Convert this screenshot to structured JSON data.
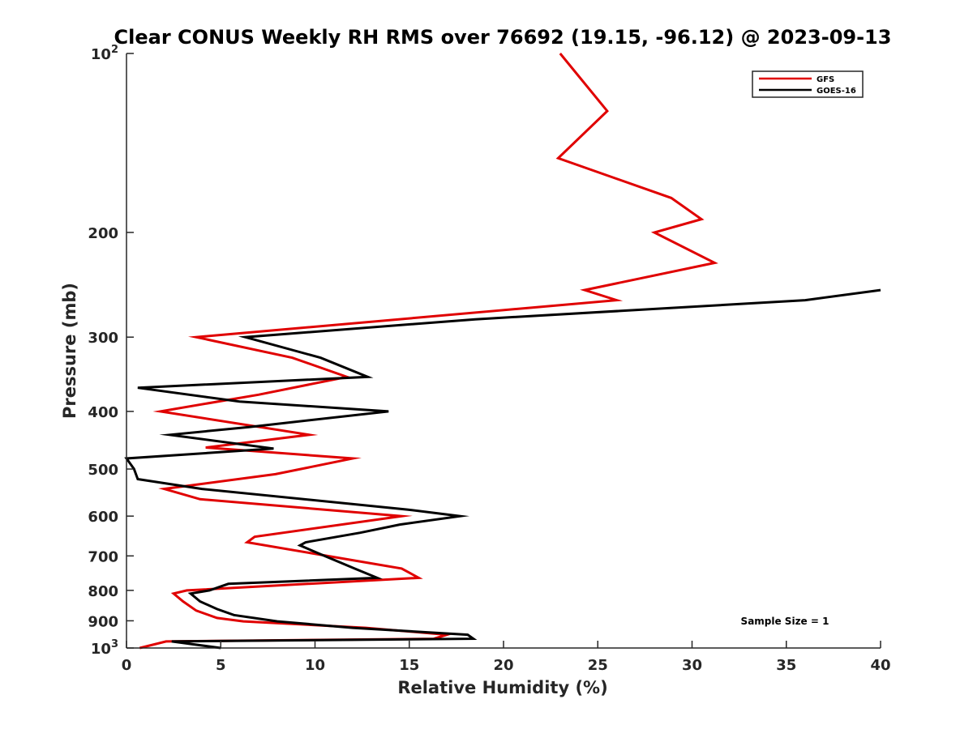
{
  "chart_data": {
    "type": "line",
    "title": "Clear CONUS Weekly RH RMS over 76692 (19.15, -96.12) @ 2023-09-13",
    "xlabel": "Relative Humidity (%)",
    "ylabel": "Pressure (mb)",
    "xlim": [
      0,
      40
    ],
    "ylim": [
      100,
      1000
    ],
    "yscale": "log",
    "y_reversed": true,
    "x_ticks": [
      "0",
      "5",
      "10",
      "15",
      "20",
      "25",
      "30",
      "35",
      "40"
    ],
    "y_ticks": [
      {
        "value": 100,
        "base": "10",
        "sup": "2"
      },
      {
        "value": 200,
        "label": "200"
      },
      {
        "value": 300,
        "label": "300"
      },
      {
        "value": 400,
        "label": "400"
      },
      {
        "value": 500,
        "label": "500"
      },
      {
        "value": 600,
        "label": "600"
      },
      {
        "value": 700,
        "label": "700"
      },
      {
        "value": 800,
        "label": "800"
      },
      {
        "value": 900,
        "label": "900"
      },
      {
        "value": 1000,
        "base": "10",
        "sup": "3"
      }
    ],
    "legend_position": "top-right",
    "annotation": "Sample Size = 1",
    "series": [
      {
        "name": "GFS",
        "color": "#e00000",
        "points": [
          [
            23.0,
            100
          ],
          [
            25.5,
            125
          ],
          [
            22.9,
            150
          ],
          [
            28.9,
            175
          ],
          [
            30.5,
            190
          ],
          [
            28.0,
            200
          ],
          [
            31.2,
            225
          ],
          [
            24.3,
            250
          ],
          [
            26.0,
            260
          ],
          [
            3.7,
            300
          ],
          [
            8.8,
            325
          ],
          [
            11.7,
            350
          ],
          [
            7.0,
            375
          ],
          [
            1.8,
            400
          ],
          [
            9.7,
            438
          ],
          [
            4.2,
            460
          ],
          [
            12.0,
            480
          ],
          [
            7.9,
            510
          ],
          [
            2.0,
            540
          ],
          [
            3.9,
            562
          ],
          [
            14.6,
            600
          ],
          [
            6.8,
            650
          ],
          [
            6.4,
            664
          ],
          [
            14.6,
            735
          ],
          [
            15.5,
            762
          ],
          [
            3.2,
            800
          ],
          [
            2.5,
            810
          ],
          [
            3.0,
            835
          ],
          [
            3.7,
            865
          ],
          [
            4.8,
            890
          ],
          [
            6.2,
            902
          ],
          [
            12.7,
            925
          ],
          [
            17.0,
            950
          ],
          [
            16.3,
            965
          ],
          [
            2.1,
            975
          ],
          [
            0.7,
            1000
          ]
        ]
      },
      {
        "name": "GOES-16",
        "color": "#000000",
        "points": [
          [
            40.0,
            250
          ],
          [
            36.0,
            260
          ],
          [
            18.5,
            280
          ],
          [
            6.3,
            300
          ],
          [
            10.3,
            325
          ],
          [
            12.8,
            350
          ],
          [
            0.6,
            365
          ],
          [
            6.0,
            385
          ],
          [
            13.9,
            400
          ],
          [
            6.5,
            425
          ],
          [
            2.3,
            438
          ],
          [
            7.8,
            462
          ],
          [
            0.0,
            480
          ],
          [
            0.4,
            500
          ],
          [
            0.6,
            520
          ],
          [
            4.0,
            540
          ],
          [
            14.9,
            585
          ],
          [
            17.7,
            600
          ],
          [
            14.5,
            620
          ],
          [
            12.4,
            640
          ],
          [
            9.5,
            664
          ],
          [
            9.2,
            672
          ],
          [
            10.5,
            700
          ],
          [
            12.1,
            735
          ],
          [
            13.3,
            762
          ],
          [
            5.4,
            780
          ],
          [
            4.4,
            800
          ],
          [
            3.4,
            810
          ],
          [
            3.9,
            835
          ],
          [
            4.8,
            860
          ],
          [
            5.7,
            880
          ],
          [
            8.0,
            902
          ],
          [
            12.0,
            925
          ],
          [
            18.1,
            950
          ],
          [
            18.4,
            965
          ],
          [
            2.4,
            975
          ],
          [
            5.0,
            1000
          ]
        ]
      }
    ]
  }
}
